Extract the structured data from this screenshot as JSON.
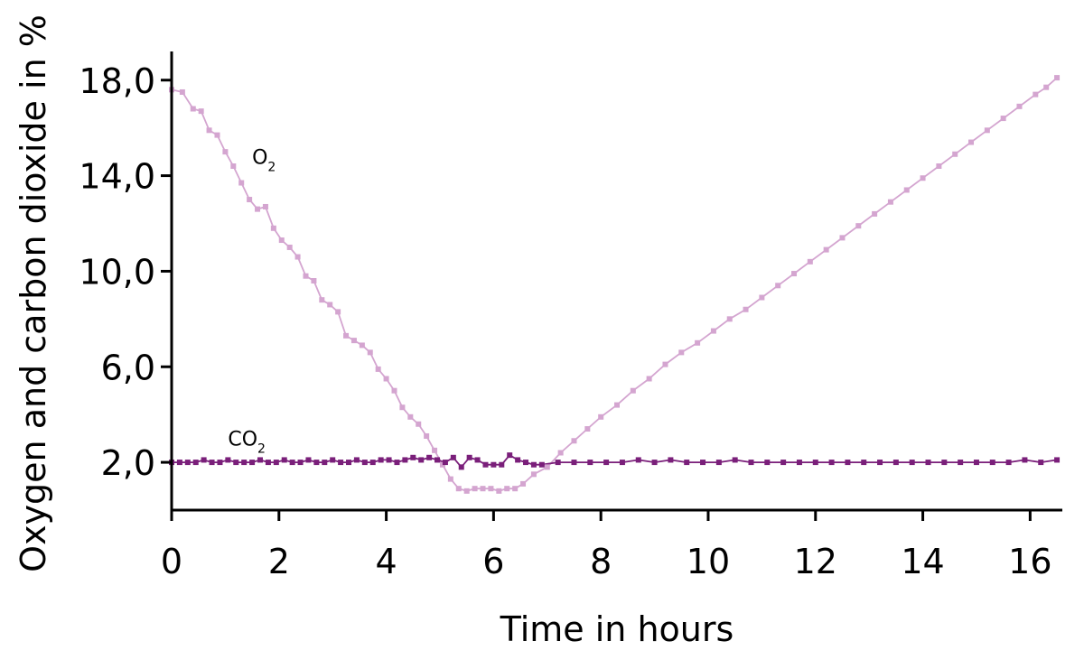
{
  "chart_data": {
    "type": "line",
    "xlabel": "Time in hours",
    "ylabel": "Oxygen and carbon dioxide in %",
    "xlim": [
      0,
      16.6
    ],
    "ylim": [
      0,
      19.2
    ],
    "xticks": [
      0,
      2,
      4,
      6,
      8,
      10,
      12,
      14,
      16
    ],
    "xtick_labels": [
      "0",
      "2",
      "4",
      "6",
      "8",
      "10",
      "12",
      "14",
      "16"
    ],
    "yticks": [
      2,
      6,
      10,
      14,
      18
    ],
    "ytick_labels": [
      "2,0",
      "6,0",
      "10,0",
      "14,0",
      "18,0"
    ],
    "grid": false,
    "colors": {
      "O2": "#d4a5d0",
      "CO2": "#7a1f7a"
    },
    "series": [
      {
        "name": "O2",
        "label_main": "O",
        "label_sub": "2",
        "x": [
          0,
          0.2,
          0.4,
          0.55,
          0.7,
          0.85,
          1.0,
          1.15,
          1.3,
          1.45,
          1.6,
          1.75,
          1.9,
          2.05,
          2.2,
          2.35,
          2.5,
          2.65,
          2.8,
          2.95,
          3.1,
          3.25,
          3.4,
          3.55,
          3.7,
          3.85,
          4.0,
          4.15,
          4.3,
          4.45,
          4.6,
          4.75,
          4.9,
          5.05,
          5.2,
          5.35,
          5.5,
          5.65,
          5.8,
          5.95,
          6.1,
          6.25,
          6.4,
          6.55,
          6.75,
          7.0,
          7.25,
          7.5,
          7.75,
          8.0,
          8.3,
          8.6,
          8.9,
          9.2,
          9.5,
          9.8,
          10.1,
          10.4,
          10.7,
          11.0,
          11.3,
          11.6,
          11.9,
          12.2,
          12.5,
          12.8,
          13.1,
          13.4,
          13.7,
          14.0,
          14.3,
          14.6,
          14.9,
          15.2,
          15.5,
          15.8,
          16.1,
          16.3,
          16.5
        ],
        "y": [
          17.6,
          17.5,
          16.8,
          16.7,
          15.9,
          15.7,
          15.0,
          14.4,
          13.7,
          13.0,
          12.6,
          12.7,
          11.8,
          11.3,
          11.0,
          10.6,
          9.8,
          9.6,
          8.8,
          8.6,
          8.3,
          7.3,
          7.1,
          6.9,
          6.6,
          5.9,
          5.5,
          5.0,
          4.3,
          3.9,
          3.6,
          3.1,
          2.5,
          1.9,
          1.3,
          0.9,
          0.8,
          0.9,
          0.9,
          0.9,
          0.8,
          0.9,
          0.9,
          1.1,
          1.5,
          1.8,
          2.4,
          2.9,
          3.4,
          3.9,
          4.4,
          5.0,
          5.5,
          6.1,
          6.6,
          7.0,
          7.5,
          8.0,
          8.4,
          8.9,
          9.4,
          9.9,
          10.4,
          10.9,
          11.4,
          11.9,
          12.4,
          12.9,
          13.4,
          13.9,
          14.4,
          14.9,
          15.4,
          15.9,
          16.4,
          16.9,
          17.4,
          17.7,
          18.1
        ]
      },
      {
        "name": "CO2",
        "label_main": "CO",
        "label_sub": "2",
        "x": [
          0,
          0.15,
          0.3,
          0.45,
          0.6,
          0.75,
          0.9,
          1.05,
          1.2,
          1.35,
          1.5,
          1.65,
          1.8,
          1.95,
          2.1,
          2.25,
          2.4,
          2.55,
          2.7,
          2.85,
          3.0,
          3.15,
          3.3,
          3.45,
          3.6,
          3.75,
          3.9,
          4.05,
          4.2,
          4.35,
          4.5,
          4.65,
          4.8,
          4.95,
          5.1,
          5.25,
          5.4,
          5.55,
          5.7,
          5.85,
          6.0,
          6.15,
          6.3,
          6.45,
          6.6,
          6.75,
          6.9,
          7.2,
          7.5,
          7.8,
          8.1,
          8.4,
          8.7,
          9.0,
          9.3,
          9.6,
          9.9,
          10.2,
          10.5,
          10.8,
          11.1,
          11.4,
          11.7,
          12.0,
          12.3,
          12.6,
          12.9,
          13.2,
          13.5,
          13.8,
          14.1,
          14.4,
          14.7,
          15.0,
          15.3,
          15.6,
          15.9,
          16.2,
          16.5
        ],
        "y": [
          2.0,
          2.0,
          2.0,
          2.0,
          2.1,
          2.0,
          2.0,
          2.1,
          2.0,
          2.0,
          2.0,
          2.1,
          2.0,
          2.0,
          2.1,
          2.0,
          2.0,
          2.1,
          2.0,
          2.0,
          2.1,
          2.0,
          2.0,
          2.1,
          2.0,
          2.0,
          2.1,
          2.1,
          2.0,
          2.1,
          2.2,
          2.1,
          2.2,
          2.1,
          2.0,
          2.2,
          1.8,
          2.2,
          2.1,
          1.9,
          1.9,
          1.9,
          2.3,
          2.1,
          2.0,
          1.9,
          1.9,
          2.0,
          2.0,
          2.0,
          2.0,
          2.0,
          2.1,
          2.0,
          2.1,
          2.0,
          2.0,
          2.0,
          2.1,
          2.0,
          2.0,
          2.0,
          2.0,
          2.0,
          2.0,
          2.0,
          2.0,
          2.0,
          2.0,
          2.0,
          2.0,
          2.0,
          2.0,
          2.0,
          2.0,
          2.0,
          2.1,
          2.0,
          2.1
        ]
      }
    ]
  }
}
